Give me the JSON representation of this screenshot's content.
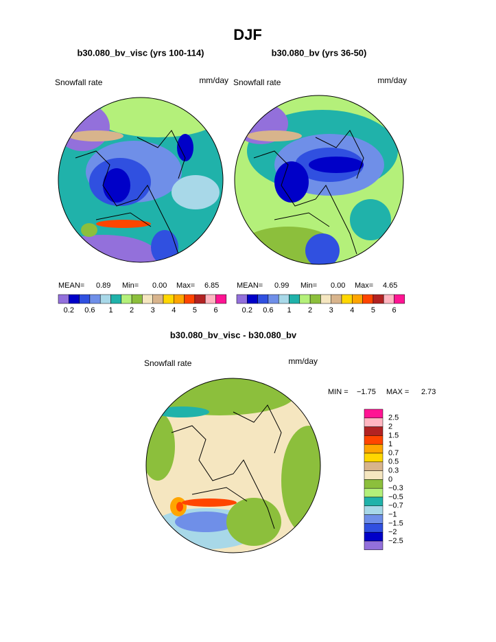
{
  "title": "DJF",
  "panels": [
    {
      "title": "b30.080_bv_visc (yrs 100-114)",
      "variable": "Snowfall rate",
      "units": "mm/day",
      "stats": [
        "MEAN=",
        "0.89",
        "Min=",
        "0.00",
        "Max=",
        "6.85"
      ],
      "colorbar_labels": [
        "0.2",
        "0.6",
        "1",
        "2",
        "3",
        "4",
        "5",
        "6"
      ]
    },
    {
      "title": "b30.080_bv (yrs 36-50)",
      "variable": "Snowfall rate",
      "units": "mm/day",
      "stats": [
        "MEAN=",
        "0.99",
        "Min=",
        "0.00",
        "Max=",
        "4.65"
      ],
      "colorbar_labels": [
        "0.2",
        "0.6",
        "1",
        "2",
        "3",
        "4",
        "5",
        "6"
      ]
    }
  ],
  "colorbar_colors": [
    "#9370db",
    "#0000c8",
    "#3050e0",
    "#6f8fe8",
    "#a8d8e8",
    "#20b2aa",
    "#b4f07a",
    "#8cbf3c",
    "#f5e6c0",
    "#d8b48c",
    "#ffd700",
    "#ffa500",
    "#ff4500",
    "#b22222",
    "#ffb6c1",
    "#ff1493"
  ],
  "diff": {
    "title": "b30.080_bv_visc - b30.080_bv",
    "variable": "Snowfall rate",
    "units": "mm/day",
    "stats": [
      "MIN =",
      "−1.75",
      "MAX =",
      "2.73"
    ],
    "colorbar_labels": [
      "2.5",
      "2",
      "1.5",
      "1",
      "0.7",
      "0.5",
      "0.3",
      "0",
      "−0.3",
      "−0.5",
      "−0.7",
      "−1",
      "−1.5",
      "−2",
      "−2.5"
    ],
    "colorbar_colors": [
      "#ff1493",
      "#ffb6c1",
      "#b22222",
      "#ff4500",
      "#ffa500",
      "#ffd700",
      "#d8b48c",
      "#f5e6c0",
      "#8cbf3c",
      "#b4f07a",
      "#20b2aa",
      "#a8d8e8",
      "#6f8fe8",
      "#3050e0",
      "#0000c8",
      "#9370db"
    ]
  }
}
